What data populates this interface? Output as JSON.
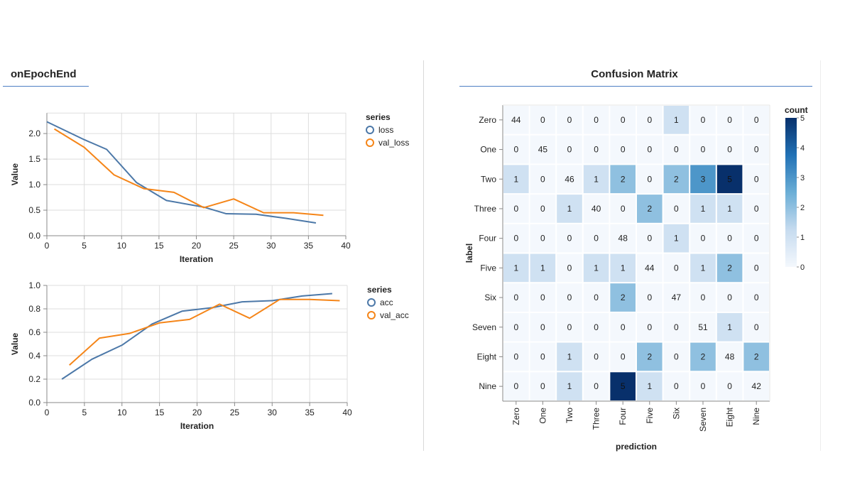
{
  "left_panel": {
    "title": "onEpochEnd"
  },
  "right_panel": {
    "title": "Confusion Matrix"
  },
  "colors": {
    "series1": "#4c78a8",
    "series2": "#f58518",
    "accent": "#4e7fc4",
    "grid": "#dddddd"
  },
  "chart_data": [
    {
      "type": "line",
      "xlabel": "Iteration",
      "ylabel": "Value",
      "xlim": [
        0,
        40
      ],
      "ylim": [
        0,
        2.4
      ],
      "xticks": [
        "0",
        "5",
        "10",
        "15",
        "20",
        "25",
        "30",
        "35",
        "40"
      ],
      "yticks": [
        "0.0",
        "0.5",
        "1.0",
        "1.5",
        "2.0"
      ],
      "legend": {
        "title": "series",
        "position": "right"
      },
      "grid": true,
      "series": [
        {
          "name": "loss",
          "color": "#4c78a8",
          "x": [
            0,
            5,
            8,
            12,
            16,
            21,
            24,
            28,
            32,
            36
          ],
          "y": [
            2.23,
            1.88,
            1.69,
            1.04,
            0.69,
            0.56,
            0.43,
            0.42,
            0.34,
            0.25
          ]
        },
        {
          "name": "val_loss",
          "color": "#f58518",
          "x": [
            1,
            5,
            9,
            13,
            17,
            21,
            25,
            29,
            33,
            37
          ],
          "y": [
            2.09,
            1.73,
            1.19,
            0.92,
            0.85,
            0.55,
            0.72,
            0.45,
            0.45,
            0.4
          ]
        }
      ]
    },
    {
      "type": "line",
      "xlabel": "Iteration",
      "ylabel": "Value",
      "xlim": [
        0,
        40
      ],
      "ylim": [
        0,
        1.0
      ],
      "xticks": [
        "0",
        "5",
        "10",
        "15",
        "20",
        "25",
        "30",
        "35",
        "40"
      ],
      "yticks": [
        "0.0",
        "0.2",
        "0.4",
        "0.6",
        "0.8",
        "1.0"
      ],
      "legend": {
        "title": "series",
        "position": "right"
      },
      "grid": true,
      "series": [
        {
          "name": "acc",
          "color": "#4c78a8",
          "x": [
            2,
            6,
            10,
            14,
            18,
            22,
            26,
            30,
            34,
            38
          ],
          "y": [
            0.2,
            0.37,
            0.49,
            0.67,
            0.78,
            0.81,
            0.86,
            0.87,
            0.91,
            0.93
          ]
        },
        {
          "name": "val_acc",
          "color": "#f58518",
          "x": [
            3,
            7,
            11,
            15,
            19,
            23,
            27,
            31,
            35,
            39
          ],
          "y": [
            0.32,
            0.55,
            0.59,
            0.68,
            0.71,
            0.84,
            0.72,
            0.88,
            0.88,
            0.87
          ]
        }
      ]
    },
    {
      "type": "heatmap",
      "xlabel": "prediction",
      "ylabel": "label",
      "categories_x": [
        "Zero",
        "One",
        "Two",
        "Three",
        "Four",
        "Five",
        "Six",
        "Seven",
        "Eight",
        "Nine"
      ],
      "categories_y": [
        "Zero",
        "One",
        "Two",
        "Three",
        "Four",
        "Five",
        "Six",
        "Seven",
        "Eight",
        "Nine"
      ],
      "values": [
        [
          44,
          0,
          0,
          0,
          0,
          0,
          1,
          0,
          0,
          0
        ],
        [
          0,
          45,
          0,
          0,
          0,
          0,
          0,
          0,
          0,
          0
        ],
        [
          1,
          0,
          46,
          1,
          2,
          0,
          2,
          3,
          5,
          0
        ],
        [
          0,
          0,
          1,
          40,
          0,
          2,
          0,
          1,
          1,
          0
        ],
        [
          0,
          0,
          0,
          0,
          48,
          0,
          1,
          0,
          0,
          0
        ],
        [
          1,
          1,
          0,
          1,
          1,
          44,
          0,
          1,
          2,
          0
        ],
        [
          0,
          0,
          0,
          0,
          2,
          0,
          47,
          0,
          0,
          0
        ],
        [
          0,
          0,
          0,
          0,
          0,
          0,
          0,
          51,
          1,
          0
        ],
        [
          0,
          0,
          1,
          0,
          0,
          2,
          0,
          2,
          48,
          2
        ],
        [
          0,
          0,
          1,
          0,
          5,
          1,
          0,
          0,
          0,
          42
        ]
      ],
      "colorscale": {
        "title": "count",
        "domain": [
          0,
          5
        ],
        "ticks": [
          "0",
          "1",
          "2",
          "3",
          "4",
          "5"
        ],
        "low": "#f4f8fd",
        "high": "#0b3b7a"
      },
      "diagonal_excluded_from_color": true
    }
  ]
}
